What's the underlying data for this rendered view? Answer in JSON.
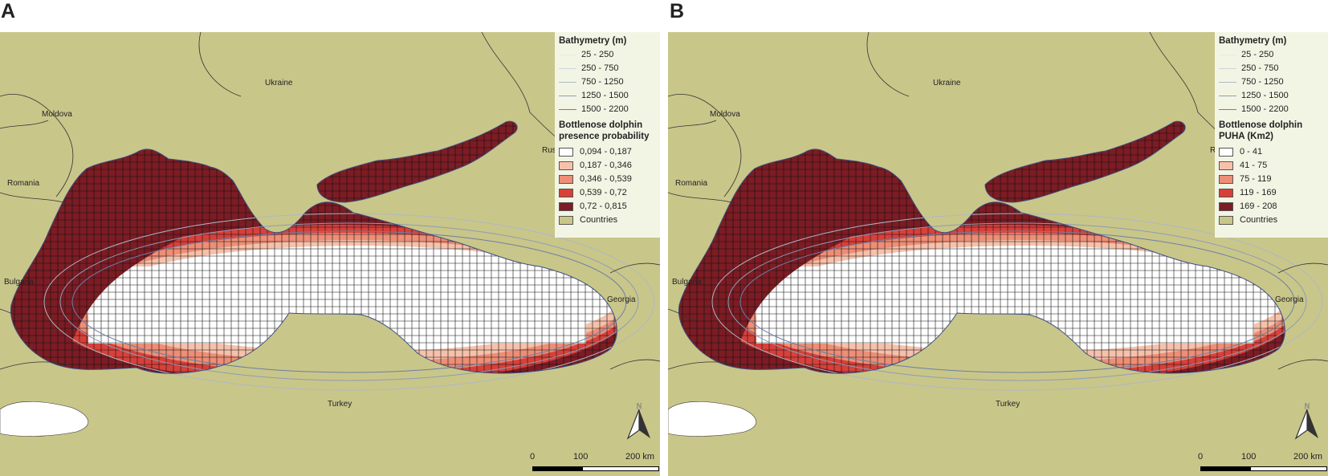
{
  "panels": [
    {
      "letter": "A",
      "country_labels": [
        "Ukraine",
        "Moldova",
        "Romania",
        "Bulgaria",
        "Turkey",
        "Georgia",
        "Rus"
      ],
      "legend": {
        "bathymetry_title": "Bathymetry (m)",
        "bathymetry": [
          {
            "label": "25 - 250",
            "color": "#e8ebdf"
          },
          {
            "label": "250 - 750",
            "color": "#cdd4d8"
          },
          {
            "label": "750 - 1250",
            "color": "#aeb8c6"
          },
          {
            "label": "1250 - 1500",
            "color": "#8d9cb6"
          },
          {
            "label": "1500 - 2200",
            "color": "#6b7fa6"
          }
        ],
        "class_title_line1": "Bottlenose dolphin",
        "class_title_line2": "presence probability",
        "classes": [
          {
            "label": "0,094 - 0,187",
            "color": "#ffffff"
          },
          {
            "label": "0,187 - 0,346",
            "color": "#f6c1ab"
          },
          {
            "label": "0,346 - 0,539",
            "color": "#ee8e76"
          },
          {
            "label": "0,539 - 0,72",
            "color": "#d8403a"
          },
          {
            "label": "0,72 - 0,815",
            "color": "#7c1c24"
          }
        ],
        "countries_label": "Countries",
        "countries_color": "#c9c68a"
      },
      "north_label": "N",
      "scale": {
        "t0": "0",
        "t1": "100",
        "t2": "200 km"
      }
    },
    {
      "letter": "B",
      "country_labels": [
        "Ukraine",
        "Moldova",
        "Romania",
        "Bulgaria",
        "Turkey",
        "Georgia",
        "Rus"
      ],
      "legend": {
        "bathymetry_title": "Bathymetry (m)",
        "bathymetry": [
          {
            "label": "25 - 250",
            "color": "#e8ebdf"
          },
          {
            "label": "250 - 750",
            "color": "#cdd4d8"
          },
          {
            "label": "750 - 1250",
            "color": "#aeb8c6"
          },
          {
            "label": "1250 - 1500",
            "color": "#8d9cb6"
          },
          {
            "label": "1500 - 2200",
            "color": "#6b7fa6"
          }
        ],
        "class_title_line1": "Bottlenose dolphin",
        "class_title_line2": "PUHA (Km2)",
        "classes": [
          {
            "label": "0 - 41",
            "color": "#ffffff"
          },
          {
            "label": "41 - 75",
            "color": "#f6c1ab"
          },
          {
            "label": "75 - 119",
            "color": "#ee8e76"
          },
          {
            "label": "119 - 169",
            "color": "#d8403a"
          },
          {
            "label": "169 - 208",
            "color": "#7c1c24"
          }
        ],
        "countries_label": "Countries",
        "countries_color": "#c9c68a"
      },
      "north_label": "N",
      "scale": {
        "t0": "0",
        "t1": "100",
        "t2": "200 km"
      }
    }
  ],
  "colors": {
    "land": "#c9c68a",
    "sea_dark": "#7c1c24",
    "sea_light": "#ffffff",
    "grid_line": "#111111",
    "border_line": "#333333",
    "legend_bg": "#f3f5e4"
  }
}
